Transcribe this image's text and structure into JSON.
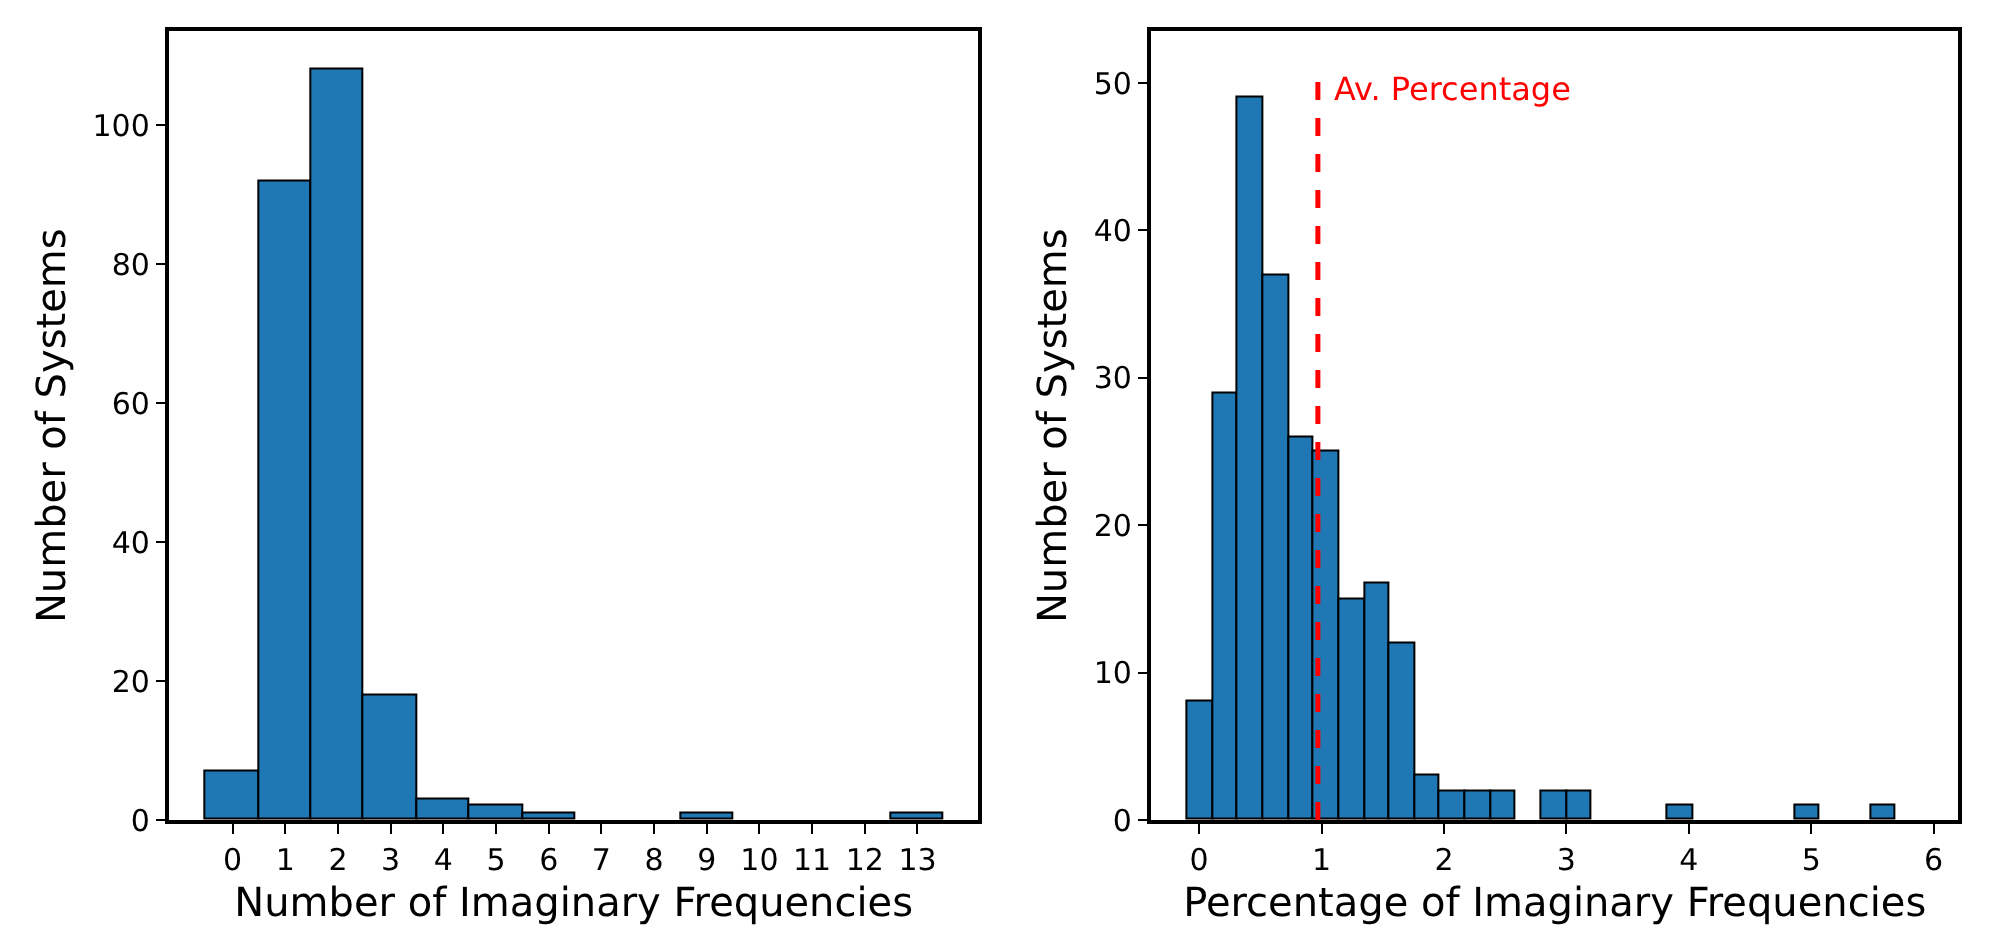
{
  "chart_data": [
    {
      "type": "histogram",
      "xlabel": "Number of Imaginary Frequencies",
      "ylabel": "Number of Systems",
      "color": "#1f77b4",
      "bins": [
        -0.5,
        0.5,
        1.5,
        2.5,
        3.5,
        4.5,
        5.5,
        6.5,
        7.5,
        8.5,
        9.5,
        10.5,
        11.5,
        12.5,
        13.5
      ],
      "values": [
        7,
        92,
        108,
        18,
        3,
        2,
        1,
        0,
        0,
        1,
        0,
        0,
        0,
        1
      ],
      "xlim": [
        -1.2,
        14.15
      ],
      "xticks": [
        0,
        1,
        2,
        3,
        4,
        5,
        6,
        7,
        8,
        9,
        10,
        11,
        12,
        13
      ],
      "ylim": [
        0,
        113.5
      ],
      "yticks": [
        0,
        20,
        40,
        60,
        80,
        100
      ]
    },
    {
      "type": "histogram",
      "xlabel": "Percentage of Imaginary Frequencies",
      "ylabel": "Number of Systems",
      "color": "#1f77b4",
      "bins": [
        -0.098,
        0.109,
        0.316,
        0.522,
        0.729,
        0.936,
        1.143,
        1.35,
        1.556,
        1.763,
        1.97,
        2.177,
        2.384,
        2.59,
        2.797,
        3.004,
        3.211,
        3.418,
        3.624,
        3.831,
        4.038,
        4.245,
        4.452,
        4.658,
        4.865,
        5.072,
        5.279,
        5.486,
        5.692
      ],
      "values": [
        8,
        29,
        49,
        37,
        26,
        25,
        15,
        16,
        12,
        3,
        2,
        2,
        2,
        0,
        2,
        2,
        0,
        0,
        0,
        1,
        0,
        0,
        0,
        0,
        1,
        0,
        0,
        1
      ],
      "xlim": [
        -0.39,
        6.2
      ],
      "xticks": [
        0,
        1,
        2,
        3,
        4,
        5,
        6
      ],
      "ylim": [
        0,
        53.5
      ],
      "yticks": [
        0,
        10,
        20,
        30,
        40,
        50
      ],
      "ref_lines": [
        {
          "axis": "x",
          "value": 0.97,
          "label": "Av. Percentage",
          "color": "#ff0000",
          "line_style": "dashed"
        }
      ]
    }
  ]
}
